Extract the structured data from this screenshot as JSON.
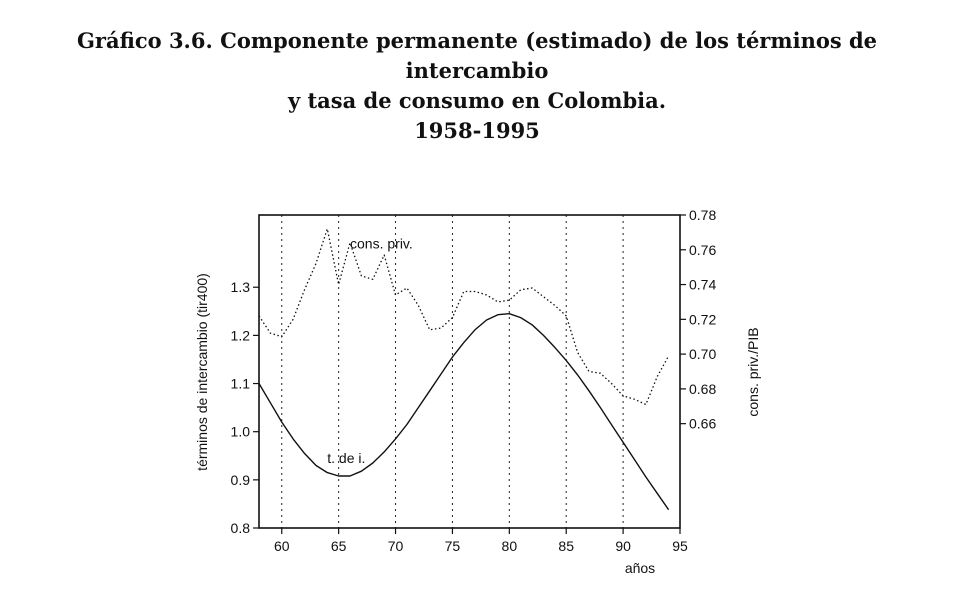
{
  "title_lines": [
    "Gráfico 3.6. Componente permanente (estimado) de los términos de",
    "intercambio",
    "y tasa de consumo en Colombia.",
    "1958-1995"
  ],
  "chart_data": {
    "type": "line",
    "xlabel": "años",
    "ylabel_left": "términos de intercambio (tir400)",
    "ylabel_right": "cons. priv./PIB",
    "xlim": [
      58,
      95
    ],
    "ylim_left": [
      0.8,
      1.45
    ],
    "ylim_right": [
      0.6,
      0.78
    ],
    "x_ticks": [
      60,
      65,
      70,
      75,
      80,
      85,
      90,
      95
    ],
    "y_ticks_left": [
      0.8,
      0.9,
      1.0,
      1.1,
      1.2,
      1.3
    ],
    "y_ticks_left_labels": [
      "0.8",
      "0.9",
      "1.0",
      "1.1",
      "1.2",
      "1.3"
    ],
    "y_ticks_right": [
      0.66,
      0.68,
      0.7,
      0.72,
      0.74,
      0.76,
      0.78
    ],
    "y_ticks_right_labels": [
      "0.66",
      "0.68",
      "0.70",
      "0.72",
      "0.74",
      "0.76",
      "0.78"
    ],
    "vertical_gridlines": [
      60,
      65,
      70,
      75,
      80,
      85,
      90
    ],
    "grid": "dotted vertical",
    "series": [
      {
        "name": "t. de i.",
        "axis": "left",
        "style": "solid",
        "x": [
          58,
          59,
          60,
          61,
          62,
          63,
          64,
          65,
          66,
          67,
          68,
          69,
          70,
          71,
          72,
          73,
          74,
          75,
          76,
          77,
          78,
          79,
          80,
          81,
          82,
          83,
          84,
          85,
          86,
          87,
          88,
          89,
          90,
          91,
          92,
          93,
          94
        ],
        "y": [
          1.1,
          1.06,
          1.02,
          0.985,
          0.955,
          0.93,
          0.915,
          0.908,
          0.908,
          0.918,
          0.935,
          0.958,
          0.985,
          1.015,
          1.05,
          1.085,
          1.12,
          1.155,
          1.185,
          1.212,
          1.232,
          1.243,
          1.245,
          1.237,
          1.222,
          1.2,
          1.175,
          1.148,
          1.118,
          1.085,
          1.05,
          1.014,
          0.978,
          0.942,
          0.906,
          0.872,
          0.838
        ]
      },
      {
        "name": "cons. priv.",
        "axis": "right",
        "style": "dotted",
        "x": [
          58,
          59,
          60,
          61,
          62,
          63,
          64,
          65,
          66,
          67,
          68,
          69,
          70,
          71,
          72,
          73,
          74,
          75,
          76,
          77,
          78,
          79,
          80,
          81,
          82,
          83,
          84,
          85,
          86,
          87,
          88,
          89,
          90,
          91,
          92,
          93,
          94
        ],
        "y": [
          0.722,
          0.712,
          0.71,
          0.72,
          0.737,
          0.752,
          0.772,
          0.74,
          0.764,
          0.745,
          0.743,
          0.757,
          0.734,
          0.738,
          0.728,
          0.714,
          0.715,
          0.721,
          0.736,
          0.736,
          0.734,
          0.73,
          0.731,
          0.737,
          0.738,
          0.733,
          0.728,
          0.722,
          0.701,
          0.69,
          0.689,
          0.683,
          0.676,
          0.674,
          0.671,
          0.687,
          0.699
        ]
      }
    ],
    "annotations": [
      {
        "text": "cons. priv.",
        "x": 66.0,
        "y_left": 1.38
      },
      {
        "text": "t. de i.",
        "x": 64.0,
        "y_left": 0.935
      }
    ]
  }
}
